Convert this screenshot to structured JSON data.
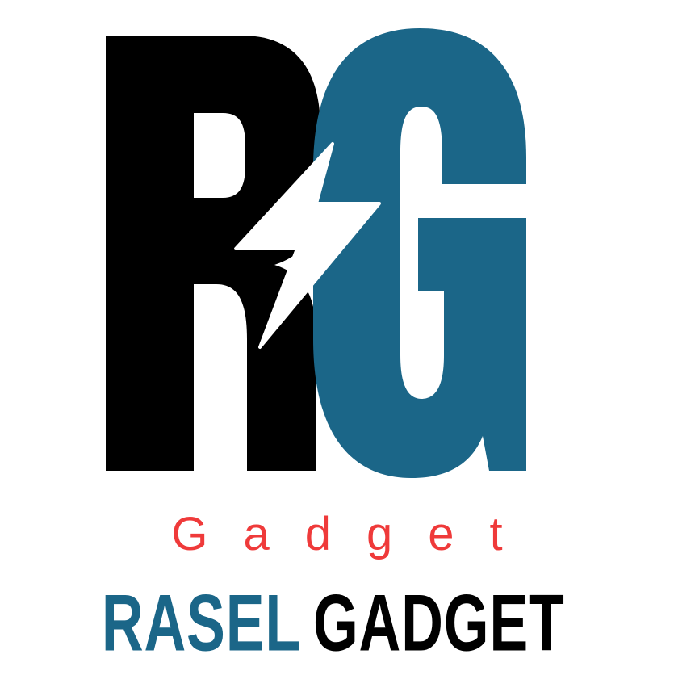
{
  "logo": {
    "monogram_letters": [
      "R",
      "G"
    ],
    "bolt_icon": "lightning-bolt-icon",
    "tagline": "Gadget",
    "brand_first": "RASEL",
    "brand_second": "GADGET"
  },
  "colors": {
    "r_fill": "#000000",
    "g_fill": "#1b6688",
    "bolt": "#ffffff",
    "tagline": "#ef3a3a",
    "brand_first": "#1b6688",
    "brand_second": "#000000",
    "background": "#ffffff"
  }
}
